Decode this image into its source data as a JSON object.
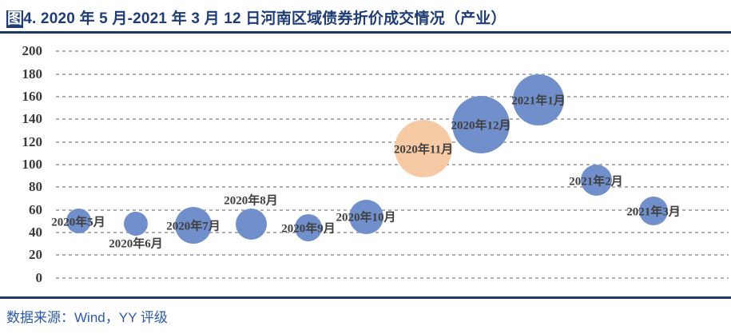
{
  "header": {
    "figure_tag": "图",
    "title_text": "4.  2020 年 5 月-2021 年 3 月 12 日河南区域债券折价成交情况（产业）",
    "accent_color": "#1f3c78"
  },
  "chart_data": {
    "type": "scatter",
    "subtype": "bubble",
    "title": "",
    "xlabel": "",
    "ylabel": "",
    "ylim": [
      0,
      200
    ],
    "ytick_interval": 20,
    "yticks": [
      0,
      20,
      40,
      60,
      80,
      100,
      120,
      140,
      160,
      180,
      200
    ],
    "grid": "horizontal-dashed",
    "gridline_color": "#b0b0b0",
    "legend": "none",
    "default_color": "#7190cb",
    "highlight_color": "#f7caa6",
    "points": [
      {
        "label": "2020年5月",
        "value": 50,
        "radius_px": 15.5,
        "color": "#7190cb",
        "label_position": "center"
      },
      {
        "label": "2020年6月",
        "value": 48,
        "radius_px": 15,
        "color": "#7190cb",
        "label_position": "below"
      },
      {
        "label": "2020年7月",
        "value": 46,
        "radius_px": 23,
        "color": "#7190cb",
        "label_position": "center"
      },
      {
        "label": "2020年8月",
        "value": 47,
        "radius_px": 19.5,
        "color": "#7190cb",
        "label_position": "above"
      },
      {
        "label": "2020年9月",
        "value": 44,
        "radius_px": 17,
        "color": "#7190cb",
        "label_position": "center"
      },
      {
        "label": "2020年10月",
        "value": 54,
        "radius_px": 21.5,
        "color": "#7190cb",
        "label_position": "center"
      },
      {
        "label": "2020年11月",
        "value": 114,
        "radius_px": 36,
        "color": "#f7caa6",
        "label_position": "center"
      },
      {
        "label": "2020年12月",
        "value": 135,
        "radius_px": 36,
        "color": "#7190cb",
        "label_position": "center"
      },
      {
        "label": "2021年1月",
        "value": 157,
        "radius_px": 32,
        "color": "#7190cb",
        "label_position": "center"
      },
      {
        "label": "2021年2月",
        "value": 86,
        "radius_px": 19.5,
        "color": "#7190cb",
        "label_position": "center"
      },
      {
        "label": "2021年3月",
        "value": 59,
        "radius_px": 18,
        "color": "#7190cb",
        "label_position": "center"
      }
    ]
  },
  "footer": {
    "source_text": "数据来源：Wind，YY 评级"
  }
}
